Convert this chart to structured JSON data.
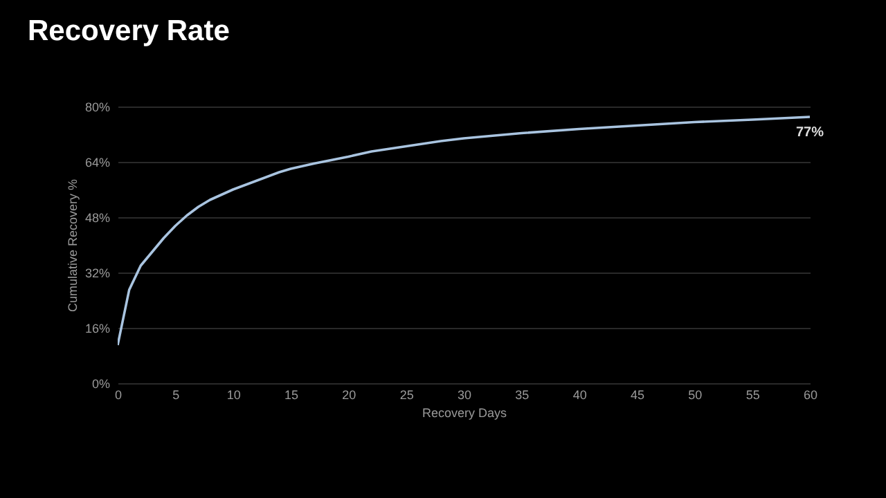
{
  "chart_data": {
    "type": "line",
    "title": "Recovery Rate",
    "xlabel": "Recovery Days",
    "ylabel": "Cumulative Recovery %",
    "x": [
      0,
      1,
      2,
      3,
      4,
      5,
      6,
      7,
      8,
      10,
      12,
      14,
      15,
      17,
      20,
      22,
      25,
      28,
      30,
      35,
      40,
      45,
      50,
      55,
      60
    ],
    "series": [
      {
        "color": "#a9c4e0",
        "values": [
          11,
          27,
          34,
          38,
          42,
          45.5,
          48.5,
          51,
          53,
          56,
          58.5,
          61,
          62,
          63.5,
          65.5,
          67,
          68.5,
          70,
          70.8,
          72.3,
          73.5,
          74.5,
          75.5,
          76.2,
          77
        ]
      }
    ],
    "xlim": [
      0,
      60
    ],
    "xticks": [
      0,
      5,
      10,
      15,
      20,
      25,
      30,
      35,
      40,
      45,
      50,
      55,
      60
    ],
    "ylim": [
      0,
      80
    ],
    "yticks": [
      {
        "value": 0,
        "label": "0%"
      },
      {
        "value": 16,
        "label": "16%"
      },
      {
        "value": 32,
        "label": "32%"
      },
      {
        "value": 48,
        "label": "48%"
      },
      {
        "value": 64,
        "label": "64%"
      },
      {
        "value": 80,
        "label": "80%"
      }
    ],
    "annotations": [
      {
        "text": "77%",
        "x": 60,
        "y": 77
      }
    ],
    "grid": "y",
    "legend": false,
    "marker": "none",
    "line_style": "solid"
  }
}
